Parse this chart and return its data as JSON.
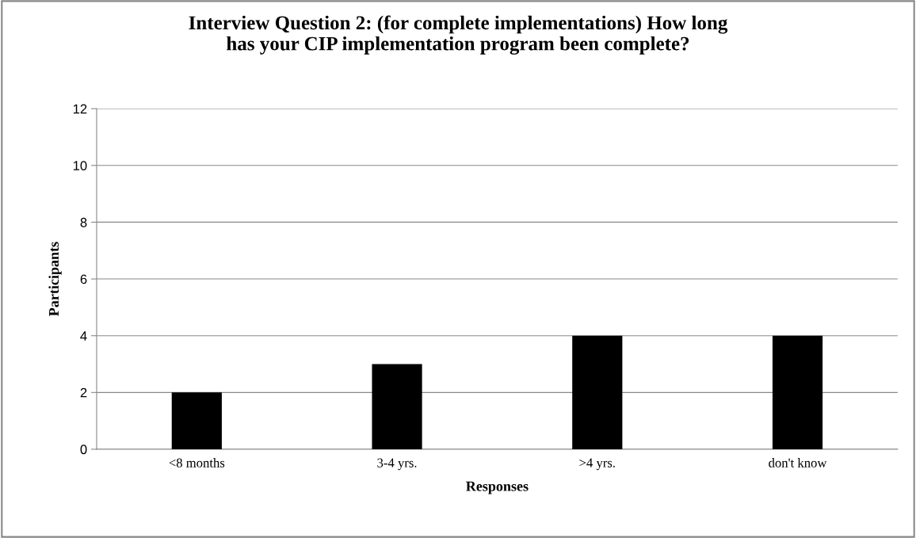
{
  "chart_data": {
    "type": "bar",
    "title": "Interview Question 2: (for complete implementations) How long\nhas your CIP implementation program been complete?",
    "xlabel": "Responses",
    "ylabel": "Participants",
    "categories": [
      "<8 months",
      "3-4 yrs.",
      ">4 yrs.",
      "don't know"
    ],
    "values": [
      2,
      3,
      4,
      4
    ],
    "color": "#000000",
    "ylim": [
      0,
      12
    ],
    "yticks": [
      0,
      2,
      4,
      6,
      8,
      10,
      12
    ],
    "grid": "y",
    "legend": false
  }
}
